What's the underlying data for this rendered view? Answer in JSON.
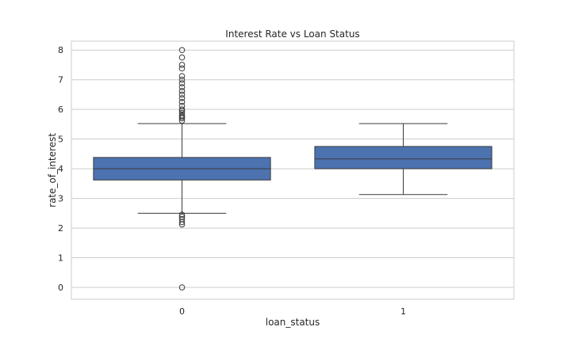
{
  "chart_data": {
    "type": "box",
    "title": "Interest Rate vs Loan Status",
    "xlabel": "loan_status",
    "ylabel": "rate_of_interest",
    "categories": [
      "0",
      "1"
    ],
    "ylim": [
      -0.4,
      8.3
    ],
    "yticks": [
      "0",
      "1",
      "2",
      "3",
      "4",
      "5",
      "6",
      "7",
      "8"
    ],
    "grid": true,
    "box_color": "#4c72b0",
    "line_color": "#3b3b3b",
    "grid_color": "#cccccc",
    "boxes": [
      {
        "category": "0",
        "whisker_low": 2.5,
        "q1": 3.62,
        "median": 4.0,
        "q3": 4.38,
        "whisker_high": 5.52,
        "outliers": [
          8.0,
          7.75,
          7.5,
          7.38,
          7.12,
          7.0,
          6.88,
          6.75,
          6.62,
          6.5,
          6.38,
          6.25,
          6.12,
          6.0,
          5.95,
          5.88,
          5.8,
          5.75,
          5.7,
          5.62,
          2.45,
          2.38,
          2.3,
          2.2,
          2.12,
          0.0
        ]
      },
      {
        "category": "1",
        "whisker_low": 3.13,
        "q1": 4.0,
        "median": 4.33,
        "q3": 4.75,
        "whisker_high": 5.52,
        "outliers": []
      }
    ]
  }
}
